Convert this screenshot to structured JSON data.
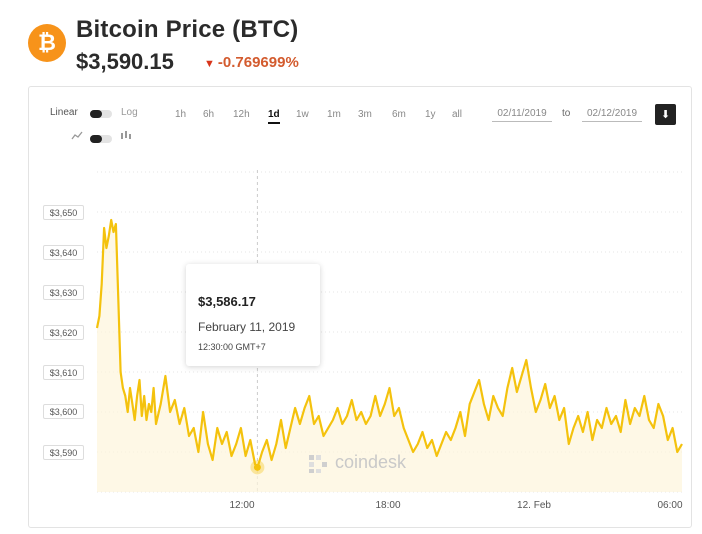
{
  "header": {
    "logo_symbol": "₿",
    "title": "Bitcoin Price (BTC)",
    "price": "$3,590.15",
    "change": "-0.769699%",
    "change_arrow": "▼"
  },
  "controls": {
    "scale_linear": "Linear",
    "scale_log": "Log",
    "ranges": [
      "1h",
      "6h",
      "12h",
      "1d",
      "1w",
      "1m",
      "3m",
      "6m",
      "1y",
      "all"
    ],
    "active_range": "1d",
    "date_from": "02/11/2019",
    "date_separator": "to",
    "date_to": "02/12/2019",
    "download_icon": "download-icon",
    "line_icon": "line-chart-icon",
    "candle_icon": "candlestick-icon"
  },
  "tooltip": {
    "price": "$3,586.17",
    "date": "February 11, 2019",
    "time": "12:30:00 GMT+7"
  },
  "watermark": "coindesk",
  "colors": {
    "line": "#f4c20d",
    "area": "#fdf5dc",
    "accent_orange": "#f7931a",
    "negative": "#d35b2e"
  },
  "chart_data": {
    "type": "area",
    "ylim": [
      3580,
      3670
    ],
    "y_ticks": [
      3650,
      3640,
      3630,
      3620,
      3610,
      3600,
      3590
    ],
    "y_tick_labels": [
      "$3,650",
      "$3,640",
      "$3,630",
      "$3,620",
      "$3,610",
      "$3,600",
      "$3,590"
    ],
    "x_ticks": [
      {
        "label": "12:00",
        "t": 7.3
      },
      {
        "label": "18:00",
        "t": 13.3
      },
      {
        "label": "12. Feb",
        "t": 19.3
      },
      {
        "label": "06:00",
        "t": 25.3
      }
    ],
    "x_range": [
      0.5,
      25.3
    ],
    "highlight": {
      "t": 7.3,
      "value": 3586.17
    },
    "series": [
      {
        "t": [
          0.5,
          0.6,
          0.7,
          0.8,
          0.9,
          1.0,
          1.1,
          1.2,
          1.3,
          1.4,
          1.5,
          1.6,
          1.7,
          1.8,
          1.9,
          2.0,
          2.1,
          2.2,
          2.3,
          2.4,
          2.5,
          2.6,
          2.7,
          2.8,
          2.9,
          3.0,
          3.2,
          3.4,
          3.6,
          3.8,
          4.0,
          4.2,
          4.4,
          4.6,
          4.8,
          5.0,
          5.2,
          5.4,
          5.6,
          5.8,
          6.0,
          6.2,
          6.4,
          6.6,
          6.8,
          7.0,
          7.2,
          7.3,
          7.5,
          7.7,
          7.9,
          8.1,
          8.3,
          8.5,
          8.7,
          8.9,
          9.1,
          9.3,
          9.5,
          9.7,
          9.9,
          10.1,
          10.3,
          10.5,
          10.7,
          10.9,
          11.1,
          11.3,
          11.5,
          11.7,
          11.9,
          12.1,
          12.3,
          12.5,
          12.7,
          12.9,
          13.1,
          13.3,
          13.5,
          13.7,
          13.9,
          14.1,
          14.3,
          14.5,
          14.7,
          14.9,
          15.1,
          15.3,
          15.5,
          15.7,
          15.9,
          16.1,
          16.3,
          16.5,
          16.7,
          16.9,
          17.1,
          17.3,
          17.5,
          17.7,
          17.9,
          18.1,
          18.3,
          18.5,
          18.7,
          18.9,
          19.1,
          19.3,
          19.5,
          19.7,
          19.9,
          20.1,
          20.3,
          20.5,
          20.7,
          20.9,
          21.1,
          21.3,
          21.5,
          21.7,
          21.9,
          22.1,
          22.3,
          22.5,
          22.7,
          22.9,
          23.1,
          23.3,
          23.5,
          23.7,
          23.9,
          24.1,
          24.3,
          24.5,
          24.7,
          24.9,
          25.1,
          25.3
        ],
        "values": [
          3621,
          3624,
          3632,
          3646,
          3641,
          3644,
          3648,
          3645,
          3647,
          3629,
          3610,
          3606,
          3604,
          3600,
          3606,
          3602,
          3598,
          3604,
          3608,
          3599,
          3604,
          3598,
          3602,
          3600,
          3606,
          3597,
          3602,
          3609,
          3600,
          3603,
          3597,
          3601,
          3594,
          3596,
          3590,
          3600,
          3592,
          3588,
          3596,
          3592,
          3595,
          3589,
          3592,
          3596,
          3589,
          3593,
          3587,
          3586,
          3590,
          3593,
          3588,
          3592,
          3598,
          3591,
          3596,
          3601,
          3597,
          3601,
          3604,
          3597,
          3599,
          3594,
          3596,
          3598,
          3601,
          3597,
          3599,
          3603,
          3598,
          3600,
          3597,
          3599,
          3604,
          3599,
          3602,
          3606,
          3599,
          3601,
          3596,
          3593,
          3590,
          3592,
          3595,
          3591,
          3593,
          3589,
          3592,
          3595,
          3593,
          3596,
          3600,
          3594,
          3602,
          3605,
          3608,
          3602,
          3598,
          3604,
          3601,
          3599,
          3606,
          3611,
          3605,
          3609,
          3613,
          3606,
          3600,
          3603,
          3607,
          3601,
          3604,
          3598,
          3601,
          3592,
          3596,
          3599,
          3595,
          3600,
          3593,
          3598,
          3596,
          3601,
          3597,
          3599,
          3595,
          3603,
          3597,
          3601,
          3599,
          3604,
          3598,
          3596,
          3602,
          3599,
          3593,
          3596,
          3590,
          3592
        ],
        "name": ""
      }
    ]
  }
}
